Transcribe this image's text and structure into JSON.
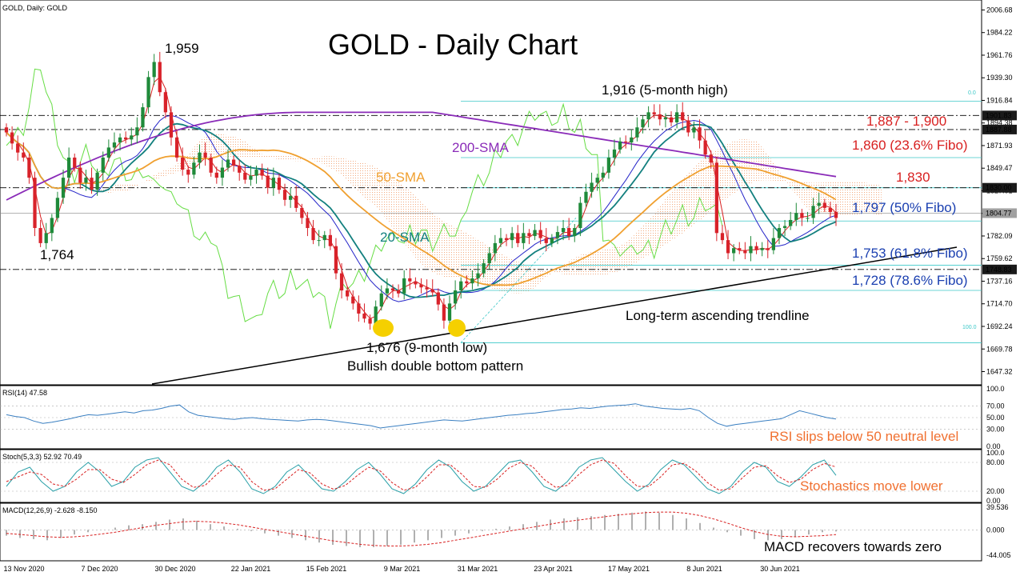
{
  "header": {
    "symbol_label": "GOLD, Daily:  GOLD",
    "title": "GOLD - Daily Chart"
  },
  "colors": {
    "bull": "#1f8a3a",
    "bear": "#d8222a",
    "sma20": "#13807f",
    "sma50": "#f0a030",
    "sma200": "#8a2bb8",
    "tenkan": "#d82020",
    "kijun": "#2323c8",
    "chikou": "#66dd44",
    "cloud": "#f0a070",
    "fibo": "#3cc8c8",
    "trendline": "#000000",
    "red_text": "#d82020",
    "blue_text": "#1a3fb0",
    "orange_text": "#f07030"
  },
  "chart_data": [
    {
      "type": "candlestick",
      "title": "GOLD - Daily Chart",
      "ylim": [
        1635,
        2015
      ],
      "y_ticks": [
        "2006.68",
        "1984.22",
        "1961.76",
        "1939.30",
        "1916.84",
        "1894.38",
        "1871.93",
        "1849.47",
        "1827.01",
        "1804.55",
        "1782.09",
        "1759.62",
        "1737.16",
        "1714.70",
        "1692.24",
        "1669.78",
        "1647.32"
      ],
      "x_ticks": [
        "13 Nov 2020",
        "7 Dec 2020",
        "30 Dec 2020",
        "22 Jan 2021",
        "15 Feb 2021",
        "9 Mar 2021",
        "31 Mar 2021",
        "23 Apr 2021",
        "17 May 2021",
        "8 Jun 2021",
        "30 Jun 2021"
      ],
      "price_tags": [
        {
          "label": "1901.83",
          "value": 1901.83,
          "style": "dark"
        },
        {
          "label": "1887.88",
          "value": 1887.88,
          "style": "dark"
        },
        {
          "label": "1830.00",
          "value": 1830.0,
          "style": "dark"
        },
        {
          "label": "1804.77",
          "value": 1804.77,
          "style": "grey"
        },
        {
          "label": "1748.83",
          "value": 1748.83,
          "style": "dark"
        }
      ],
      "close": [
        1885,
        1874,
        1865,
        1860,
        1840,
        1790,
        1775,
        1785,
        1800,
        1820,
        1840,
        1860,
        1850,
        1835,
        1840,
        1828,
        1845,
        1860,
        1870,
        1875,
        1880,
        1878,
        1882,
        1890,
        1910,
        1940,
        1955,
        1925,
        1905,
        1880,
        1860,
        1848,
        1843,
        1855,
        1865,
        1860,
        1845,
        1840,
        1850,
        1858,
        1852,
        1845,
        1838,
        1842,
        1848,
        1842,
        1830,
        1840,
        1828,
        1818,
        1822,
        1810,
        1800,
        1790,
        1778,
        1778,
        1783,
        1772,
        1745,
        1728,
        1722,
        1715,
        1705,
        1700,
        1695,
        1712,
        1725,
        1730,
        1728,
        1725,
        1740,
        1737,
        1734,
        1731,
        1729,
        1726,
        1714,
        1698,
        1715,
        1728,
        1737,
        1735,
        1740,
        1745,
        1755,
        1765,
        1775,
        1780,
        1778,
        1785,
        1775,
        1785,
        1782,
        1788,
        1780,
        1775,
        1780,
        1786,
        1790,
        1782,
        1790,
        1815,
        1826,
        1835,
        1840,
        1845,
        1860,
        1868,
        1876,
        1875,
        1880,
        1890,
        1898,
        1905,
        1903,
        1898,
        1900,
        1895,
        1905,
        1897,
        1885,
        1890,
        1877,
        1863,
        1855,
        1785,
        1778,
        1765,
        1770,
        1768,
        1765,
        1772,
        1768,
        1770,
        1768,
        1780,
        1790,
        1792,
        1798,
        1805,
        1800,
        1800,
        1812,
        1815,
        1810,
        1806,
        1800
      ],
      "open_offset_note": "",
      "overlays": [
        {
          "name": "200-SMA",
          "label": "200-SMA"
        },
        {
          "name": "50-SMA",
          "label": "50-SMA"
        },
        {
          "name": "20-SMA",
          "label": "20-SMA"
        }
      ]
    },
    {
      "type": "line",
      "title": "RSI(14) 47.58",
      "ylim": [
        0,
        100
      ],
      "y_ticks": [
        "100.0",
        "70.00",
        "50.00",
        "30.00",
        "0.00"
      ],
      "series": [
        {
          "name": "RSI(14)",
          "values": [
            55,
            52,
            50,
            44,
            40,
            42,
            45,
            48,
            52,
            55,
            54,
            56,
            58,
            60,
            58,
            62,
            63,
            66,
            70,
            72,
            60,
            54,
            52,
            50,
            48,
            47,
            49,
            50,
            48,
            47,
            46,
            45,
            44,
            46,
            47,
            46,
            44,
            42,
            40,
            38,
            36,
            32,
            34,
            36,
            38,
            40,
            42,
            44,
            46,
            45,
            44,
            46,
            48,
            50,
            52,
            54,
            55,
            57,
            58,
            60,
            62,
            64,
            65,
            67,
            66,
            68,
            70,
            71,
            72,
            74,
            70,
            68,
            66,
            65,
            64,
            66,
            62,
            50,
            40,
            35,
            38,
            40,
            42,
            44,
            46,
            48,
            55,
            62,
            58,
            54,
            50,
            47.58
          ]
        }
      ]
    },
    {
      "type": "line",
      "title": "Stoch(5,3,3) 52.92 70.49",
      "ylim": [
        0,
        100
      ],
      "y_ticks": [
        "100.0",
        "80.00",
        "20.00",
        "0.00"
      ],
      "series": [
        {
          "name": "%K",
          "values": [
            30,
            60,
            70,
            40,
            20,
            30,
            60,
            80,
            60,
            30,
            40,
            70,
            85,
            90,
            60,
            30,
            20,
            40,
            70,
            85,
            60,
            25,
            15,
            30,
            60,
            75,
            50,
            25,
            20,
            40,
            65,
            80,
            55,
            25,
            15,
            35,
            65,
            85,
            70,
            40,
            20,
            30,
            55,
            80,
            85,
            60,
            30,
            20,
            40,
            70,
            85,
            90,
            65,
            40,
            20,
            35,
            65,
            85,
            75,
            50,
            25,
            15,
            30,
            60,
            80,
            70,
            40,
            30,
            50,
            75,
            85,
            52.92
          ]
        },
        {
          "name": "%D",
          "values": [
            40,
            50,
            60,
            55,
            35,
            30,
            45,
            65,
            65,
            45,
            38,
            55,
            75,
            85,
            75,
            45,
            28,
            32,
            55,
            75,
            70,
            40,
            22,
            25,
            45,
            65,
            58,
            35,
            24,
            32,
            52,
            70,
            62,
            38,
            22,
            28,
            50,
            75,
            75,
            55,
            30,
            28,
            45,
            68,
            80,
            72,
            45,
            28,
            32,
            55,
            75,
            85,
            78,
            52,
            30,
            30,
            50,
            75,
            78,
            62,
            38,
            22,
            25,
            48,
            70,
            73,
            52,
            38,
            45,
            65,
            78,
            70.49
          ]
        }
      ]
    },
    {
      "type": "bar",
      "title": "MACD(12,26,9) -2.628 -8.150",
      "ylim": [
        -44.005,
        39.536
      ],
      "y_ticks": [
        "39.536",
        "0.000",
        "-44.005"
      ],
      "series": [
        {
          "name": "MACD",
          "values": [
            -10,
            -14,
            -16,
            -18,
            -14,
            -8,
            -4,
            0,
            4,
            8,
            10,
            14,
            18,
            20,
            16,
            10,
            6,
            2,
            -2,
            -6,
            -10,
            -14,
            -18,
            -22,
            -26,
            -28,
            -30,
            -30,
            -28,
            -26,
            -22,
            -18,
            -14,
            -10,
            -6,
            -2,
            2,
            6,
            10,
            14,
            18,
            20,
            22,
            24,
            26,
            28,
            30,
            32,
            30,
            26,
            20,
            12,
            4,
            -4,
            -10,
            -16,
            -18,
            -16,
            -12,
            -8,
            -4,
            -2.628
          ]
        },
        {
          "name": "Signal",
          "values": [
            -6,
            -8,
            -10,
            -12,
            -13,
            -12,
            -10,
            -7,
            -4,
            0,
            4,
            8,
            11,
            14,
            15,
            14,
            12,
            9,
            5,
            1,
            -3,
            -7,
            -11,
            -15,
            -19,
            -22,
            -25,
            -27,
            -28,
            -28,
            -27,
            -25,
            -22,
            -18,
            -14,
            -10,
            -6,
            -2,
            2,
            6,
            10,
            14,
            17,
            20,
            23,
            26,
            28,
            30,
            31,
            31,
            29,
            25,
            19,
            12,
            4,
            -3,
            -8,
            -11,
            -12,
            -11,
            -10,
            -8.15
          ]
        }
      ]
    }
  ],
  "annotations": {
    "high_1959": "1,959",
    "low_1764": "1,764",
    "high_1916": "1,916 (5-month high)",
    "low_1676": "1,676 (9-month low)",
    "double_bottom": "Bullish double bottom pattern",
    "trendline": "Long-term ascending trendline",
    "sma200": "200-SMA",
    "sma50": "50-SMA",
    "sma20": "20-SMA",
    "zone_1887": "1,887 - 1,900",
    "fibo_236": "1,860 (23.6% Fibo)",
    "lvl_1830": "1,830",
    "fibo_50": "1,797 (50% Fibo)",
    "fibo_618": "1,753 (61.8% Fibo)",
    "fibo_786": "1,728 (78.6% Fibo)",
    "fibo_0": "0.0",
    "fibo_100": "100.0",
    "rsi_note": "RSI slips below 50 neutral level",
    "stoch_note": "Stochastics move lower",
    "macd_note": "MACD recovers towards zero"
  }
}
